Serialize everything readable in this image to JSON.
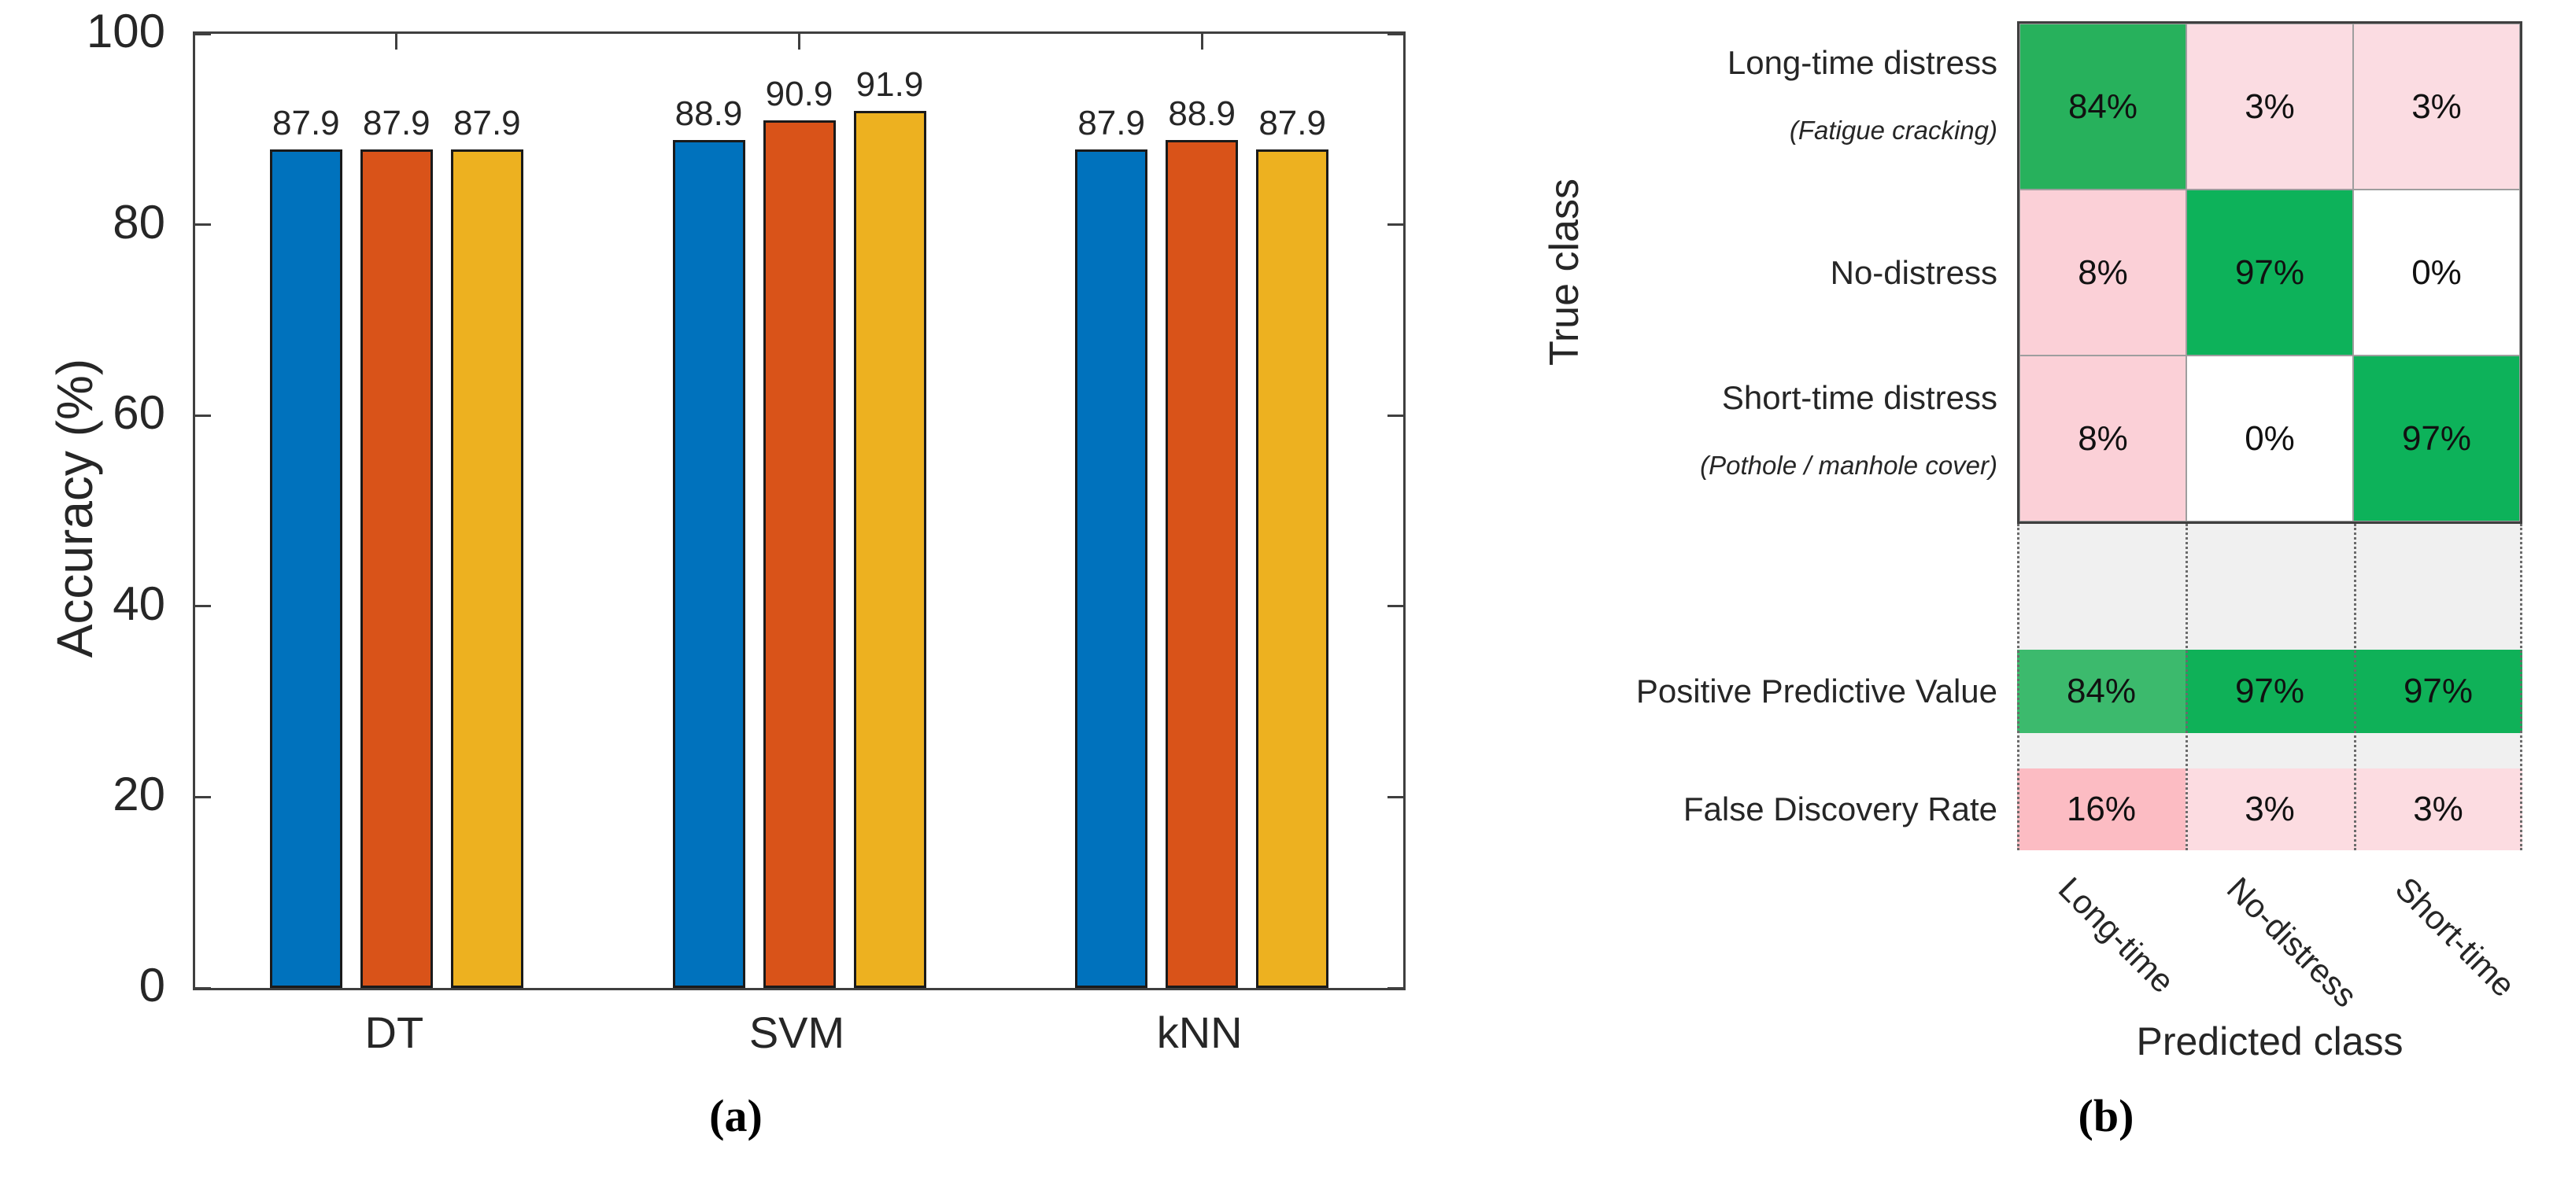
{
  "chart_data": [
    {
      "id": "accuracy-bar-chart",
      "type": "bar",
      "title": "",
      "xlabel": "",
      "ylabel": "Accuracy (%)",
      "ylim": [
        0,
        100
      ],
      "yticks": [
        0,
        20,
        40,
        60,
        80,
        100
      ],
      "categories": [
        "DT",
        "SVM",
        "kNN"
      ],
      "series": [
        {
          "name": "series-blue",
          "color": "#0072BD",
          "values": [
            87.9,
            88.9,
            87.9
          ]
        },
        {
          "name": "series-orange",
          "color": "#D95319",
          "values": [
            87.9,
            90.9,
            88.9
          ]
        },
        {
          "name": "series-yellow",
          "color": "#EDB120",
          "values": [
            87.9,
            91.9,
            87.9
          ]
        }
      ],
      "bar_value_labels": [
        [
          "87.9",
          "87.9",
          "87.9"
        ],
        [
          "88.9",
          "90.9",
          "91.9"
        ],
        [
          "87.9",
          "88.9",
          "87.9"
        ]
      ],
      "grid": false,
      "legend": "none",
      "caption": "(a)"
    },
    {
      "id": "confusion-matrix",
      "type": "heatmap",
      "xlabel": "Predicted class",
      "ylabel": "True class",
      "rows": [
        {
          "main": "Long-time distress",
          "sub": "(Fatigue cracking)"
        },
        {
          "main": "No-distress",
          "sub": ""
        },
        {
          "main": "Short-time distress",
          "sub": "(Pothole / manhole cover)"
        }
      ],
      "col_labels": [
        "Long-time",
        "No-distress",
        "Short-time"
      ],
      "matrix": [
        [
          {
            "v": "84%",
            "bg": "#27B15C"
          },
          {
            "v": "3%",
            "bg": "#FBDCE2"
          },
          {
            "v": "3%",
            "bg": "#FBDCE2"
          }
        ],
        [
          {
            "v": "8%",
            "bg": "#FBD0D7"
          },
          {
            "v": "97%",
            "bg": "#0DB25A"
          },
          {
            "v": "0%",
            "bg": "#FFFFFF"
          }
        ],
        [
          {
            "v": "8%",
            "bg": "#FBD0D7"
          },
          {
            "v": "0%",
            "bg": "#FFFFFF"
          },
          {
            "v": "97%",
            "bg": "#0DB25A"
          }
        ]
      ],
      "summary": [
        {
          "label": "Positive Predictive Value",
          "cells": [
            {
              "v": "84%",
              "bg": "#3CBA6D"
            },
            {
              "v": "97%",
              "bg": "#0FB158"
            },
            {
              "v": "97%",
              "bg": "#0FB158"
            }
          ]
        },
        {
          "label": "False Discovery Rate",
          "cells": [
            {
              "v": "16%",
              "bg": "#FCBCC3"
            },
            {
              "v": "3%",
              "bg": "#FCDCE1"
            },
            {
              "v": "3%",
              "bg": "#FCDCE1"
            }
          ]
        }
      ],
      "caption": "(b)"
    }
  ],
  "palette": {
    "matlab_blue": "#0072BD",
    "matlab_orange": "#D95319",
    "matlab_yellow": "#EDB120",
    "diag_green_strong": "#0DB25A",
    "diag_green_soft": "#27B15C",
    "offdiag_pink": "#FBDCE2",
    "offdiag_pink_deep": "#FBD0D7",
    "fdr_red": "#FCBCC3",
    "filler_gray": "#F0F0F0"
  }
}
